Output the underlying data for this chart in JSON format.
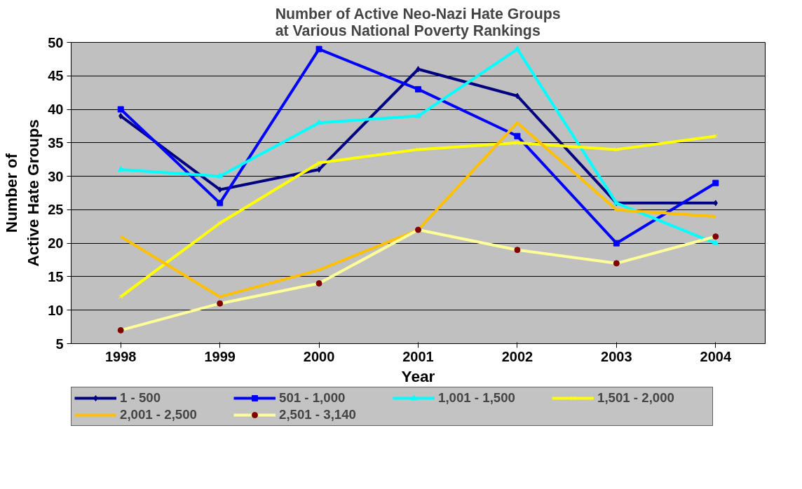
{
  "chart_data": {
    "type": "line",
    "title": "Number of Active Neo-Nazi Hate Groups\nat Various National Poverty Rankings",
    "xlabel": "Year",
    "ylabel": "Number of\nActive Hate Groups",
    "categories": [
      "1998",
      "1999",
      "2000",
      "2001",
      "2002",
      "2003",
      "2004"
    ],
    "ylim": [
      5,
      50
    ],
    "yticks": [
      5,
      10,
      15,
      20,
      25,
      30,
      35,
      40,
      45,
      50
    ],
    "grid": "y",
    "legend": "bottom",
    "series": [
      {
        "name": "1 - 500",
        "color": "#000080",
        "marker": "diamond",
        "values": [
          39,
          28,
          31,
          46,
          42,
          26,
          26
        ]
      },
      {
        "name": "501 - 1,000",
        "color": "#0000ff",
        "marker": "square",
        "values": [
          40,
          26,
          49,
          43,
          36,
          20,
          29
        ]
      },
      {
        "name": "1,001 - 1,500",
        "color": "#00ffff",
        "marker": "triangle",
        "values": [
          31,
          30,
          38,
          39,
          49,
          26,
          20
        ]
      },
      {
        "name": "1,501 - 2,000",
        "color": "#ffff00",
        "marker": "cross",
        "values": [
          12,
          23,
          32,
          34,
          35,
          34,
          36
        ]
      },
      {
        "name": "2,001 - 2,500",
        "color": "#ffc000",
        "marker": "none",
        "values": [
          21,
          12,
          16,
          22,
          38,
          25,
          24
        ]
      },
      {
        "name": "2,501 - 3,140",
        "color": "#ffff99",
        "marker": "circle",
        "values": [
          7,
          11,
          14,
          22,
          19,
          17,
          21
        ]
      }
    ]
  }
}
